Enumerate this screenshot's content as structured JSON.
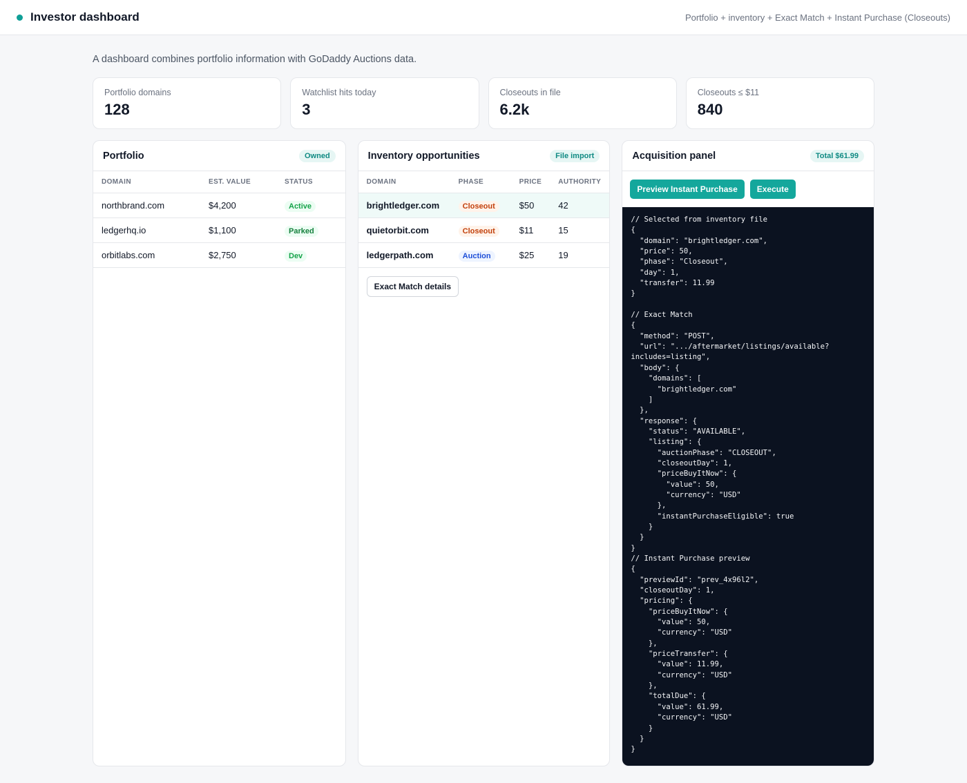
{
  "header": {
    "title": "Investor dashboard",
    "subtitle": "Portfolio + inventory + Exact Match + Instant Purchase (Closeouts)"
  },
  "intro": "A dashboard combines portfolio information with GoDaddy Auctions data.",
  "stats": [
    {
      "label": "Portfolio domains",
      "value": "128"
    },
    {
      "label": "Watchlist hits today",
      "value": "3"
    },
    {
      "label": "Closeouts in file",
      "value": "6.2k"
    },
    {
      "label": "Closeouts ≤ $11",
      "value": "840"
    }
  ],
  "portfolio": {
    "title": "Portfolio",
    "pill": "Owned",
    "columns": [
      "DOMAIN",
      "EST. VALUE",
      "STATUS"
    ],
    "rows": [
      {
        "domain": "northbrand.com",
        "value": "$4,200",
        "status": "Active"
      },
      {
        "domain": "ledgerhq.io",
        "value": "$1,100",
        "status": "Parked"
      },
      {
        "domain": "orbitlabs.com",
        "value": "$2,750",
        "status": "Dev"
      }
    ]
  },
  "inventory": {
    "title": "Inventory opportunities",
    "pill": "File import",
    "columns": [
      "DOMAIN",
      "PHASE",
      "PRICE",
      "AUTHORITY"
    ],
    "rows": [
      {
        "domain": "brightledger.com",
        "phase": "Closeout",
        "price": "$50",
        "authority": "42"
      },
      {
        "domain": "quietorbit.com",
        "phase": "Closeout",
        "price": "$11",
        "authority": "15"
      },
      {
        "domain": "ledgerpath.com",
        "phase": "Auction",
        "price": "$25",
        "authority": "19"
      }
    ],
    "details_button": "Exact Match details"
  },
  "acquisition": {
    "title": "Acquisition panel",
    "pill": "Total $61.99",
    "preview_button": "Preview Instant Purchase",
    "execute_button": "Execute",
    "code": "// Selected from inventory file\n{\n  \"domain\": \"brightledger.com\",\n  \"price\": 50,\n  \"phase\": \"Closeout\",\n  \"day\": 1,\n  \"transfer\": 11.99\n}\n\n// Exact Match\n{\n  \"method\": \"POST\",\n  \"url\": \".../aftermarket/listings/available?\nincludes=listing\",\n  \"body\": {\n    \"domains\": [\n      \"brightledger.com\"\n    ]\n  },\n  \"response\": {\n    \"status\": \"AVAILABLE\",\n    \"listing\": {\n      \"auctionPhase\": \"CLOSEOUT\",\n      \"closeoutDay\": 1,\n      \"priceBuyItNow\": {\n        \"value\": 50,\n        \"currency\": \"USD\"\n      },\n      \"instantPurchaseEligible\": true\n    }\n  }\n}\n// Instant Purchase preview\n{\n  \"previewId\": \"prev_4x96l2\",\n  \"closeoutDay\": 1,\n  \"pricing\": {\n    \"priceBuyItNow\": {\n      \"value\": 50,\n      \"currency\": \"USD\"\n    },\n    \"priceTransfer\": {\n      \"value\": 11.99,\n      \"currency\": \"USD\"\n    },\n    \"totalDue\": {\n      \"value\": 61.99,\n      \"currency\": \"USD\"\n    }\n  }\n}"
  },
  "colors": {
    "accent": "#14a79c",
    "code_bg": "#0b1220",
    "selected_row": "#effaf8"
  }
}
